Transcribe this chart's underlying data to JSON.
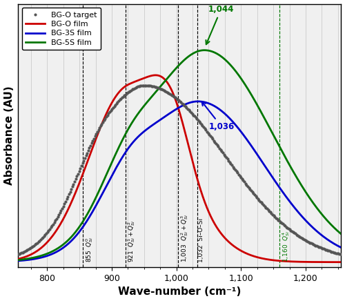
{
  "xmin": 755,
  "xmax": 1255,
  "xlabel": "Wave-number (cm⁻¹)",
  "ylabel": "Absorbance (AU)",
  "legend_entries": [
    "BG-O target",
    "BG-O film",
    "BG-3S film",
    "BG-5S film"
  ],
  "dot_color": "#555555",
  "red_color": "#cc0000",
  "blue_color": "#0000cc",
  "green_color": "#007700",
  "bg_color": "#f0f0f0",
  "grid_color": "#cccccc",
  "vlines_black": [
    855,
    921,
    1003,
    1032
  ],
  "vline_green": 1160
}
